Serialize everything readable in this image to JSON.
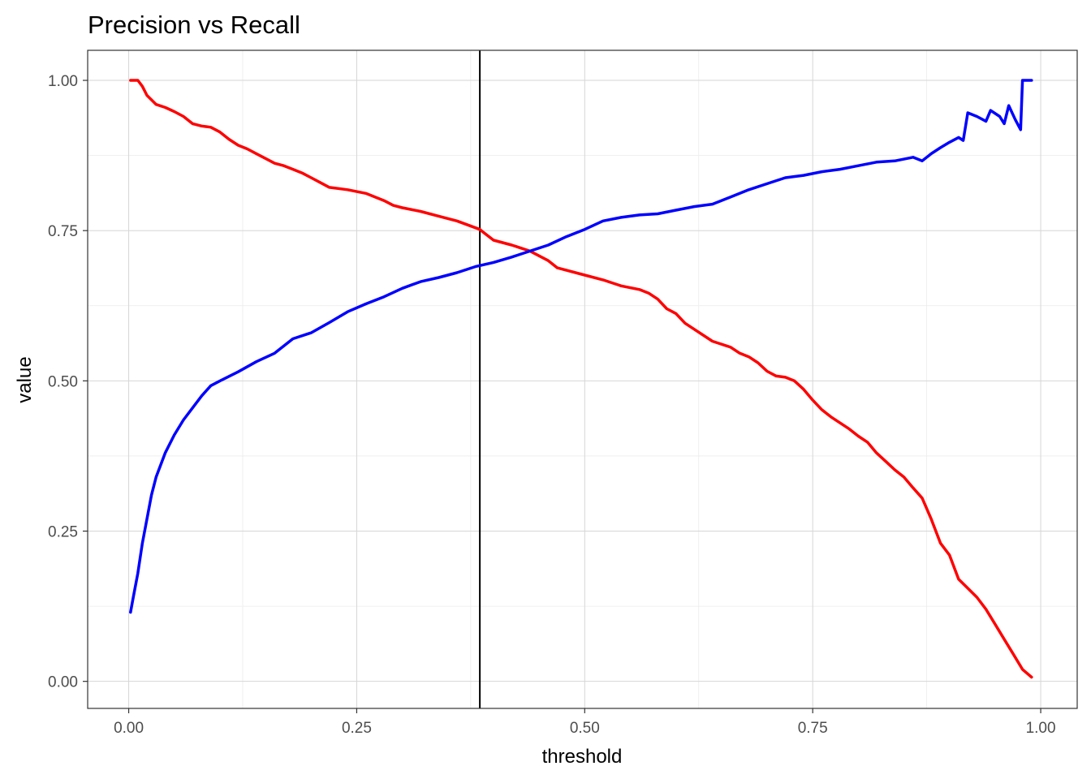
{
  "chart_data": {
    "type": "line",
    "title": "Precision vs Recall",
    "xlabel": "threshold",
    "ylabel": "value",
    "xlim": [
      -0.045,
      1.04
    ],
    "ylim": [
      -0.045,
      1.05
    ],
    "x_ticks": [
      0,
      0.25,
      0.5,
      0.75,
      1.0
    ],
    "x_tick_labels": [
      "0.00",
      "0.25",
      "0.50",
      "0.75",
      "1.00"
    ],
    "y_ticks": [
      0,
      0.25,
      0.5,
      0.75,
      1.0
    ],
    "y_tick_labels": [
      "0.00",
      "0.25",
      "0.50",
      "0.75",
      "1.00"
    ],
    "grid": true,
    "legend": "none",
    "vline": {
      "x": 0.385,
      "color": "#000000"
    },
    "series": [
      {
        "color": "#ff0000",
        "points": [
          [
            0.002,
            1.0
          ],
          [
            0.01,
            1.0
          ],
          [
            0.015,
            0.99
          ],
          [
            0.02,
            0.975
          ],
          [
            0.03,
            0.96
          ],
          [
            0.04,
            0.955
          ],
          [
            0.05,
            0.948
          ],
          [
            0.06,
            0.94
          ],
          [
            0.07,
            0.928
          ],
          [
            0.08,
            0.924
          ],
          [
            0.09,
            0.922
          ],
          [
            0.1,
            0.914
          ],
          [
            0.11,
            0.902
          ],
          [
            0.12,
            0.892
          ],
          [
            0.13,
            0.886
          ],
          [
            0.14,
            0.878
          ],
          [
            0.15,
            0.87
          ],
          [
            0.16,
            0.862
          ],
          [
            0.17,
            0.858
          ],
          [
            0.18,
            0.852
          ],
          [
            0.19,
            0.846
          ],
          [
            0.2,
            0.838
          ],
          [
            0.21,
            0.83
          ],
          [
            0.22,
            0.822
          ],
          [
            0.24,
            0.818
          ],
          [
            0.26,
            0.812
          ],
          [
            0.27,
            0.806
          ],
          [
            0.28,
            0.8
          ],
          [
            0.29,
            0.792
          ],
          [
            0.3,
            0.788
          ],
          [
            0.32,
            0.782
          ],
          [
            0.34,
            0.774
          ],
          [
            0.36,
            0.766
          ],
          [
            0.385,
            0.752
          ],
          [
            0.39,
            0.746
          ],
          [
            0.4,
            0.734
          ],
          [
            0.42,
            0.726
          ],
          [
            0.44,
            0.716
          ],
          [
            0.46,
            0.7
          ],
          [
            0.47,
            0.688
          ],
          [
            0.5,
            0.676
          ],
          [
            0.52,
            0.668
          ],
          [
            0.54,
            0.658
          ],
          [
            0.56,
            0.652
          ],
          [
            0.57,
            0.646
          ],
          [
            0.58,
            0.636
          ],
          [
            0.59,
            0.62
          ],
          [
            0.6,
            0.612
          ],
          [
            0.61,
            0.596
          ],
          [
            0.62,
            0.586
          ],
          [
            0.63,
            0.576
          ],
          [
            0.64,
            0.566
          ],
          [
            0.66,
            0.556
          ],
          [
            0.67,
            0.546
          ],
          [
            0.68,
            0.54
          ],
          [
            0.69,
            0.53
          ],
          [
            0.7,
            0.516
          ],
          [
            0.71,
            0.508
          ],
          [
            0.72,
            0.506
          ],
          [
            0.73,
            0.5
          ],
          [
            0.74,
            0.486
          ],
          [
            0.75,
            0.468
          ],
          [
            0.76,
            0.452
          ],
          [
            0.77,
            0.44
          ],
          [
            0.78,
            0.43
          ],
          [
            0.79,
            0.42
          ],
          [
            0.8,
            0.408
          ],
          [
            0.81,
            0.398
          ],
          [
            0.82,
            0.38
          ],
          [
            0.83,
            0.366
          ],
          [
            0.84,
            0.352
          ],
          [
            0.85,
            0.34
          ],
          [
            0.86,
            0.322
          ],
          [
            0.87,
            0.305
          ],
          [
            0.88,
            0.27
          ],
          [
            0.89,
            0.23
          ],
          [
            0.9,
            0.21
          ],
          [
            0.91,
            0.17
          ],
          [
            0.92,
            0.155
          ],
          [
            0.93,
            0.14
          ],
          [
            0.94,
            0.12
          ],
          [
            0.95,
            0.095
          ],
          [
            0.96,
            0.07
          ],
          [
            0.97,
            0.045
          ],
          [
            0.98,
            0.02
          ],
          [
            0.99,
            0.007
          ]
        ]
      },
      {
        "color": "#0000ff",
        "points": [
          [
            0.002,
            0.115
          ],
          [
            0.005,
            0.14
          ],
          [
            0.01,
            0.18
          ],
          [
            0.015,
            0.23
          ],
          [
            0.02,
            0.27
          ],
          [
            0.025,
            0.31
          ],
          [
            0.03,
            0.34
          ],
          [
            0.04,
            0.38
          ],
          [
            0.05,
            0.41
          ],
          [
            0.06,
            0.435
          ],
          [
            0.07,
            0.455
          ],
          [
            0.08,
            0.475
          ],
          [
            0.09,
            0.492
          ],
          [
            0.1,
            0.5
          ],
          [
            0.12,
            0.515
          ],
          [
            0.14,
            0.532
          ],
          [
            0.16,
            0.546
          ],
          [
            0.18,
            0.57
          ],
          [
            0.2,
            0.58
          ],
          [
            0.22,
            0.597
          ],
          [
            0.24,
            0.615
          ],
          [
            0.26,
            0.628
          ],
          [
            0.28,
            0.64
          ],
          [
            0.3,
            0.654
          ],
          [
            0.32,
            0.665
          ],
          [
            0.34,
            0.672
          ],
          [
            0.36,
            0.68
          ],
          [
            0.38,
            0.69
          ],
          [
            0.4,
            0.697
          ],
          [
            0.42,
            0.706
          ],
          [
            0.44,
            0.716
          ],
          [
            0.46,
            0.726
          ],
          [
            0.48,
            0.74
          ],
          [
            0.5,
            0.752
          ],
          [
            0.52,
            0.766
          ],
          [
            0.54,
            0.772
          ],
          [
            0.56,
            0.776
          ],
          [
            0.58,
            0.778
          ],
          [
            0.6,
            0.784
          ],
          [
            0.62,
            0.79
          ],
          [
            0.64,
            0.794
          ],
          [
            0.66,
            0.806
          ],
          [
            0.68,
            0.818
          ],
          [
            0.7,
            0.828
          ],
          [
            0.72,
            0.838
          ],
          [
            0.74,
            0.842
          ],
          [
            0.76,
            0.848
          ],
          [
            0.78,
            0.852
          ],
          [
            0.8,
            0.858
          ],
          [
            0.82,
            0.864
          ],
          [
            0.84,
            0.866
          ],
          [
            0.86,
            0.872
          ],
          [
            0.87,
            0.866
          ],
          [
            0.88,
            0.878
          ],
          [
            0.89,
            0.888
          ],
          [
            0.9,
            0.897
          ],
          [
            0.91,
            0.905
          ],
          [
            0.915,
            0.9
          ],
          [
            0.92,
            0.946
          ],
          [
            0.93,
            0.94
          ],
          [
            0.94,
            0.932
          ],
          [
            0.945,
            0.95
          ],
          [
            0.955,
            0.94
          ],
          [
            0.96,
            0.928
          ],
          [
            0.965,
            0.958
          ],
          [
            0.972,
            0.935
          ],
          [
            0.978,
            0.918
          ],
          [
            0.98,
            1.0
          ],
          [
            0.99,
            1.0
          ]
        ]
      }
    ]
  }
}
